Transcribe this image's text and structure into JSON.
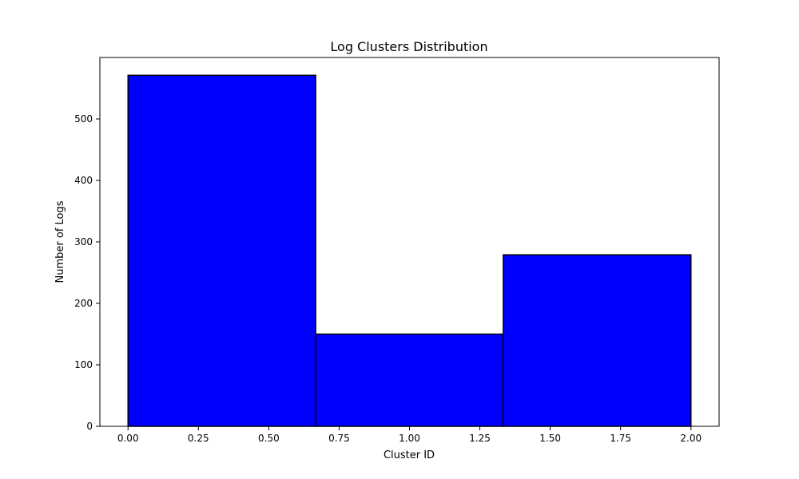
{
  "chart_data": {
    "type": "bar",
    "title": "Log Clusters Distribution",
    "xlabel": "Cluster ID",
    "ylabel": "Number of Logs",
    "bins": [
      {
        "x0": 0.0,
        "x1": 0.6667,
        "value": 571
      },
      {
        "x0": 0.6667,
        "x1": 1.3333,
        "value": 150
      },
      {
        "x0": 1.3333,
        "x1": 2.0,
        "value": 279
      }
    ],
    "xlim": [
      -0.1,
      2.1
    ],
    "ylim": [
      0,
      600
    ],
    "xticks": [
      0.0,
      0.25,
      0.5,
      0.75,
      1.0,
      1.25,
      1.5,
      1.75,
      2.0
    ],
    "xtick_labels": [
      "0.00",
      "0.25",
      "0.50",
      "0.75",
      "1.00",
      "1.25",
      "1.50",
      "1.75",
      "2.00"
    ],
    "yticks": [
      0,
      100,
      200,
      300,
      400,
      500
    ],
    "ytick_labels": [
      "0",
      "100",
      "200",
      "300",
      "400",
      "500"
    ],
    "bar_color": "#0000ff",
    "edge_color": "#000000",
    "grid": false,
    "legend": "none"
  }
}
